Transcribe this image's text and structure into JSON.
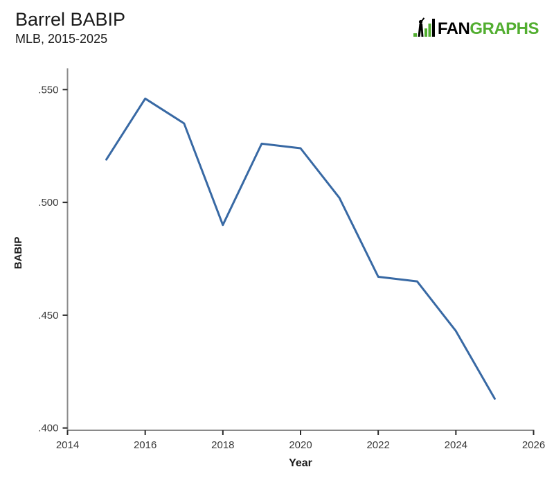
{
  "header": {
    "title": "Barrel BABIP",
    "subtitle": "MLB, 2015-2025"
  },
  "logo": {
    "name": "FanGraphs",
    "text_fan": "FAN",
    "text_graphs": "GRAPHS",
    "green_color": "#52ae30",
    "black_color": "#000000"
  },
  "chart_data": {
    "type": "line",
    "title": "Barrel BABIP",
    "subtitle": "MLB, 2015-2025",
    "xlabel": "Year",
    "ylabel": "BABIP",
    "series": [
      {
        "name": "Barrel BABIP",
        "x": [
          2015,
          2016,
          2017,
          2018,
          2019,
          2020,
          2021,
          2022,
          2023,
          2024,
          2025
        ],
        "values": [
          0.519,
          0.546,
          0.535,
          0.49,
          0.526,
          0.524,
          0.502,
          0.467,
          0.465,
          0.443,
          0.413
        ]
      }
    ],
    "line_color": "#3869a4",
    "axis_color": "#8a8a8a",
    "tick_color": "#2b2b2b",
    "x_axis": {
      "min": 2014,
      "max": 2026,
      "ticks": [
        2014,
        2016,
        2018,
        2020,
        2022,
        2024,
        2026
      ],
      "tick_labels": [
        "2014",
        "2016",
        "2018",
        "2020",
        "2022",
        "2024",
        "2026"
      ]
    },
    "y_axis": {
      "min": 0.4,
      "max": 0.55,
      "ticks": [
        0.4,
        0.45,
        0.5,
        0.55
      ],
      "tick_labels": [
        ".400",
        ".450",
        ".500",
        ".550"
      ]
    },
    "grid": false,
    "legend": false
  }
}
